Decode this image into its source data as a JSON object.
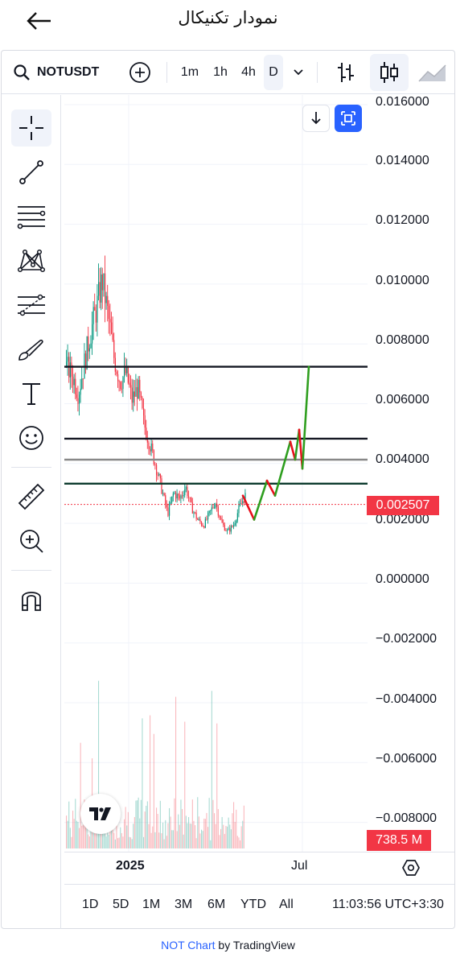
{
  "header": {
    "title": "نمودار تکنیکال",
    "back_icon": "arrow-left-icon"
  },
  "toolbar": {
    "symbol": "NOTUSDT",
    "timeframes": [
      "1m",
      "1h",
      "4h",
      "D"
    ],
    "active_timeframe": "D"
  },
  "price_axis": {
    "labels": [
      "0.016000",
      "0.014000",
      "0.012000",
      "0.010000",
      "0.008000",
      "0.006000",
      "0.004000",
      "0.002000",
      "0.000000",
      "−0.002000",
      "−0.004000",
      "−0.006000",
      "−0.008000"
    ],
    "last_price": "0.002507",
    "volume": "738.5 M"
  },
  "time_axis": {
    "labels": [
      "2025",
      "Jul"
    ]
  },
  "ranges": [
    "1D",
    "5D",
    "1M",
    "3M",
    "6M",
    "YTD",
    "All"
  ],
  "clock": "11:03:56 UTC+3:30",
  "footer": {
    "link": "NOT Chart",
    "text": " by TradingView"
  },
  "colors": {
    "up": "#089981",
    "down": "#f23645",
    "accent": "#2962ff",
    "projection_up": "#2e9e1f",
    "projection_down": "#e8101c"
  },
  "chart_data": {
    "type": "candlestick",
    "yrange": [
      -0.009,
      0.0163
    ],
    "levels": [
      {
        "price": 0.0071,
        "color": "#131722"
      },
      {
        "price": 0.0047,
        "color": "#131722"
      },
      {
        "price": 0.004,
        "color": "#888888"
      },
      {
        "price": 0.0032,
        "color": "#0d3b2e"
      }
    ],
    "last_price_value": 0.002507,
    "close_path": [
      0.0071,
      0.0068,
      0.0062,
      0.0072,
      0.0082,
      0.009,
      0.01,
      0.0088,
      0.0074,
      0.0066,
      0.0069,
      0.006,
      0.0064,
      0.0052,
      0.0045,
      0.0038,
      0.003,
      0.0022,
      0.0029,
      0.0027,
      0.0031,
      0.0024,
      0.002,
      0.0018,
      0.0022,
      0.0026,
      0.0019,
      0.0016,
      0.0018,
      0.0024,
      0.0028
    ],
    "projection": [
      {
        "price": 0.0028,
        "trend": "down"
      },
      {
        "price": 0.002,
        "trend": "up"
      },
      {
        "price": 0.0033,
        "trend": "down"
      },
      {
        "price": 0.0028,
        "trend": "up"
      },
      {
        "price": 0.0046,
        "trend": "down"
      },
      {
        "price": 0.004,
        "trend": "up"
      },
      {
        "price": 0.005,
        "trend": "down"
      },
      {
        "price": 0.0037,
        "trend": "up"
      },
      {
        "price": 0.0071,
        "trend": "up"
      }
    ]
  }
}
